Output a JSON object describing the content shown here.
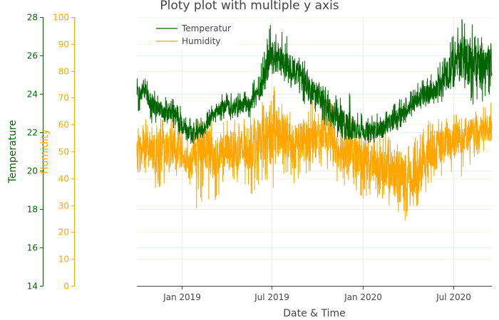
{
  "chart_data": {
    "type": "line",
    "title": "Ploty plot with multiple y axis",
    "xlabel": "Date & Time",
    "x_ticks": [
      "Jan 2019",
      "Jul 2019",
      "Jan 2020",
      "Jul 2020"
    ],
    "x_range": [
      "2018-10-02",
      "2020-09-17"
    ],
    "legend": {
      "position": "top-left inside",
      "entries": [
        "Temperatur",
        "Humidity"
      ]
    },
    "grid": true,
    "y_axes": [
      {
        "id": "y1",
        "label": "Temperature",
        "color": "#006400",
        "range": [
          14,
          28
        ],
        "ticks": [
          14,
          16,
          18,
          20,
          22,
          24,
          26,
          28
        ]
      },
      {
        "id": "y2",
        "label": "Humidity",
        "color": "#FFA500",
        "range": [
          0,
          100
        ],
        "ticks": [
          0,
          10,
          20,
          30,
          40,
          50,
          60,
          70,
          80,
          90,
          100
        ]
      }
    ],
    "x": [
      "2018-10-02",
      "2018-10-16",
      "2018-11-01",
      "2018-11-16",
      "2018-12-01",
      "2018-12-16",
      "2019-01-01",
      "2019-01-16",
      "2019-02-01",
      "2019-02-15",
      "2019-03-01",
      "2019-03-16",
      "2019-04-01",
      "2019-04-16",
      "2019-05-01",
      "2019-05-16",
      "2019-06-01",
      "2019-06-16",
      "2019-07-01",
      "2019-07-16",
      "2019-08-01",
      "2019-08-16",
      "2019-09-01",
      "2019-09-16",
      "2019-10-01",
      "2019-10-16",
      "2019-11-01",
      "2019-11-16",
      "2019-12-01",
      "2019-12-16",
      "2020-01-01",
      "2020-01-16",
      "2020-02-01",
      "2020-02-15",
      "2020-03-01",
      "2020-03-16",
      "2020-04-01",
      "2020-04-16",
      "2020-05-01",
      "2020-05-16",
      "2020-06-01",
      "2020-06-16",
      "2020-07-01",
      "2020-07-16",
      "2020-08-01",
      "2020-08-16",
      "2020-09-01",
      "2020-09-17"
    ],
    "series": [
      {
        "name": "Temperatur",
        "axis": "y1",
        "color": "#006400",
        "values": [
          24.0,
          24.3,
          23.4,
          23.2,
          23.0,
          23.0,
          22.4,
          22.0,
          22.0,
          22.3,
          22.7,
          23.2,
          23.4,
          23.2,
          23.3,
          23.5,
          24.0,
          24.8,
          26.2,
          25.8,
          25.6,
          25.3,
          24.8,
          24.3,
          23.8,
          23.4,
          23.0,
          22.6,
          22.3,
          22.2,
          22.1,
          22.0,
          22.2,
          22.3,
          22.6,
          22.9,
          23.3,
          23.6,
          23.9,
          24.1,
          24.4,
          24.8,
          25.6,
          26.0,
          25.8,
          25.4,
          25.4,
          25.6
        ],
        "low": [
          23.0,
          23.3,
          22.4,
          22.5,
          22.4,
          22.2,
          21.6,
          21.4,
          21.4,
          21.8,
          22.0,
          22.5,
          22.7,
          22.6,
          22.6,
          22.7,
          23.2,
          23.6,
          24.8,
          24.7,
          24.4,
          24.2,
          23.6,
          23.0,
          22.8,
          22.4,
          22.0,
          21.6,
          21.6,
          21.7,
          21.6,
          21.4,
          21.6,
          21.7,
          21.9,
          22.2,
          22.6,
          22.9,
          23.0,
          23.3,
          23.4,
          23.6,
          24.2,
          24.4,
          23.4,
          23.2,
          23.3,
          23.8
        ],
        "high": [
          24.8,
          25.0,
          24.4,
          24.0,
          23.8,
          23.8,
          23.3,
          22.8,
          22.8,
          23.0,
          23.5,
          24.0,
          24.1,
          24.0,
          24.1,
          24.3,
          25.0,
          26.2,
          28.0,
          27.4,
          27.2,
          26.5,
          26.0,
          25.5,
          24.8,
          24.4,
          24.0,
          24.3,
          24.5,
          23.6,
          23.0,
          23.2,
          23.0,
          23.2,
          23.5,
          23.8,
          24.1,
          24.5,
          24.8,
          25.0,
          25.6,
          26.2,
          27.6,
          28.0,
          28.0,
          27.4,
          26.8,
          26.8
        ]
      },
      {
        "name": "Humidity",
        "axis": "y2",
        "color": "#FFA500",
        "values": [
          50,
          52,
          50,
          49,
          51,
          52,
          49,
          45,
          52,
          53,
          49,
          48,
          50,
          51,
          50,
          52,
          53,
          55,
          55,
          56,
          55,
          54,
          54,
          55,
          57,
          58,
          53,
          51,
          50,
          48,
          47,
          46,
          45,
          44,
          42,
          40,
          39,
          41,
          46,
          49,
          51,
          53,
          55,
          56,
          57,
          57,
          58,
          59
        ],
        "low": [
          41,
          42,
          36,
          35,
          38,
          40,
          42,
          38,
          27,
          32,
          30,
          33,
          36,
          37,
          34,
          33,
          36,
          40,
          33,
          38,
          40,
          38,
          40,
          42,
          44,
          45,
          40,
          38,
          37,
          35,
          31,
          30,
          33,
          30,
          25,
          23,
          24,
          28,
          33,
          38,
          38,
          40,
          37,
          40,
          44,
          48,
          50,
          52
        ],
        "high": [
          62,
          63,
          62,
          62,
          64,
          66,
          60,
          55,
          62,
          63,
          62,
          61,
          62,
          63,
          62,
          64,
          65,
          70,
          76,
          70,
          68,
          66,
          67,
          68,
          70,
          72,
          68,
          65,
          64,
          62,
          60,
          58,
          56,
          57,
          55,
          55,
          54,
          58,
          60,
          63,
          62,
          64,
          66,
          64,
          66,
          66,
          68,
          70
        ]
      }
    ]
  }
}
